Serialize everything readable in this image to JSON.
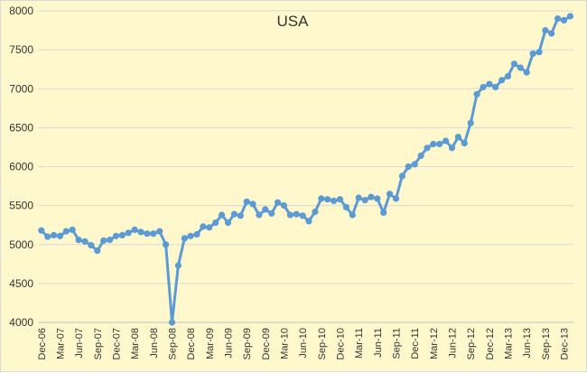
{
  "chart_data": {
    "type": "line",
    "title": "USA",
    "xlabel": "",
    "ylabel": "",
    "ylim": [
      4000,
      8000
    ],
    "y_ticks": [
      4000,
      4500,
      5000,
      5500,
      6000,
      6500,
      7000,
      7500,
      8000
    ],
    "x_tick_labels": [
      "Dec-06",
      "Mar-07",
      "Jun-07",
      "Sep-07",
      "Dec-07",
      "Mar-08",
      "Jun-08",
      "Sep-08",
      "Dec-08",
      "Mar-09",
      "Jun-09",
      "Sep-09",
      "Dec-09",
      "Mar-10",
      "Jun-10",
      "Sep-10",
      "Dec-10",
      "Mar-11",
      "Jun-11",
      "Sep-11",
      "Dec-11",
      "Mar-12",
      "Jun-12",
      "Sep-12",
      "Dec-12",
      "Mar-13",
      "Jun-13",
      "Sep-13",
      "Dec-13"
    ],
    "grid": "horizontal",
    "legend": "none",
    "colors": {
      "line": "#5b9bd5",
      "grid": "#d9d9d9",
      "background": "#fff8cc"
    },
    "series": [
      {
        "values": [
          5180,
          5100,
          5120,
          5110,
          5170,
          5190,
          5060,
          5040,
          4990,
          4920,
          5050,
          5060,
          5110,
          5120,
          5150,
          5190,
          5160,
          5140,
          5140,
          5170,
          5000,
          4000,
          4730,
          5080,
          5110,
          5130,
          5230,
          5220,
          5280,
          5380,
          5280,
          5390,
          5370,
          5550,
          5520,
          5380,
          5450,
          5400,
          5540,
          5500,
          5380,
          5390,
          5370,
          5300,
          5420,
          5590,
          5580,
          5560,
          5580,
          5480,
          5380,
          5600,
          5570,
          5610,
          5590,
          5410,
          5650,
          5590,
          5880,
          6000,
          6030,
          6140,
          6240,
          6290,
          6290,
          6330,
          6240,
          6380,
          6300,
          6560,
          6930,
          7020,
          7060,
          7020,
          7110,
          7160,
          7320,
          7270,
          7210,
          7450,
          7470,
          7750,
          7710,
          7900,
          7880,
          7930
        ]
      }
    ]
  }
}
